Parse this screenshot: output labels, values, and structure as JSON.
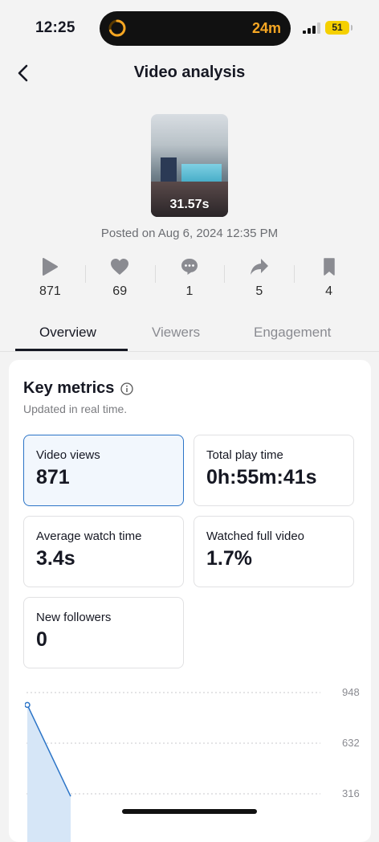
{
  "status_bar": {
    "time": "12:25",
    "timer": "24m",
    "battery": "51"
  },
  "header": {
    "title": "Video analysis"
  },
  "video": {
    "duration": "31.57s",
    "posted": "Posted on Aug 6, 2024 12:35 PM"
  },
  "stats": [
    {
      "icon": "play-icon",
      "value": "871"
    },
    {
      "icon": "heart-icon",
      "value": "69"
    },
    {
      "icon": "comment-icon",
      "value": "1"
    },
    {
      "icon": "share-icon",
      "value": "5"
    },
    {
      "icon": "bookmark-icon",
      "value": "4"
    }
  ],
  "tabs": [
    {
      "label": "Overview",
      "active": true
    },
    {
      "label": "Viewers",
      "active": false
    },
    {
      "label": "Engagement",
      "active": false
    }
  ],
  "key_metrics": {
    "title": "Key metrics",
    "subtitle": "Updated in real time.",
    "tiles": [
      {
        "label": "Video views",
        "value": "871"
      },
      {
        "label": "Total play time",
        "value": "0h:55m:41s"
      },
      {
        "label": "Average watch time",
        "value": "3.4s"
      },
      {
        "label": "Watched full video",
        "value": "1.7%"
      },
      {
        "label": "New followers",
        "value": "0"
      }
    ]
  },
  "chart_data": {
    "type": "area",
    "y_ticks": [
      "948",
      "632",
      "316"
    ],
    "ylim": [
      0,
      948
    ],
    "series": [
      {
        "values": [
          871,
          300
        ]
      }
    ],
    "colors": {
      "line": "#2b74c7",
      "fill": "#d6e6f7"
    }
  }
}
